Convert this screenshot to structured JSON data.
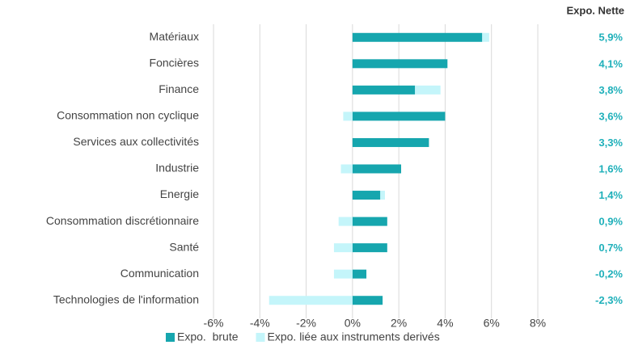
{
  "chart_data": {
    "type": "bar",
    "orientation": "horizontal",
    "stacked": true,
    "categories": [
      "Matériaux",
      "Foncières",
      "Finance",
      "Consommation non cyclique",
      "Services aux collectivités",
      "Industrie",
      "Energie",
      "Consommation discrétionnaire",
      "Santé",
      "Communication",
      "Technologies de l'information"
    ],
    "series": [
      {
        "name": "Expo.  brute",
        "color": "#16a6ae",
        "values": [
          5.6,
          4.1,
          2.7,
          4.0,
          3.3,
          2.1,
          1.2,
          1.5,
          1.5,
          0.6,
          1.3
        ]
      },
      {
        "name": "Expo. liée aux instruments derivés",
        "color": "#c4f5fa",
        "values": [
          0.3,
          0,
          1.1,
          -0.4,
          0,
          -0.5,
          0.2,
          -0.6,
          -0.8,
          -0.8,
          -3.6
        ]
      }
    ],
    "net": {
      "name": "Expo. Nette",
      "values": [
        5.9,
        4.1,
        3.8,
        3.6,
        3.3,
        1.6,
        1.4,
        0.9,
        0.7,
        -0.2,
        -2.3
      ],
      "value_labels": [
        "5,9%",
        "4,1%",
        "3,8%",
        "3,6%",
        "3,3%",
        "1,6%",
        "1,4%",
        "0,9%",
        "0,7%",
        "-0,2%",
        "-2,3%"
      ]
    },
    "xlim": [
      -6,
      8
    ],
    "xticks": [
      {
        "value": -6,
        "label": "-6%"
      },
      {
        "value": -4,
        "label": "-4%"
      },
      {
        "value": -2,
        "label": "-2%"
      },
      {
        "value": 0,
        "label": "0%"
      },
      {
        "value": 2,
        "label": "2%"
      },
      {
        "value": 4,
        "label": "4%"
      },
      {
        "value": 6,
        "label": "6%"
      },
      {
        "value": 8,
        "label": "8%"
      }
    ],
    "grid": true,
    "legend": "bottom"
  }
}
